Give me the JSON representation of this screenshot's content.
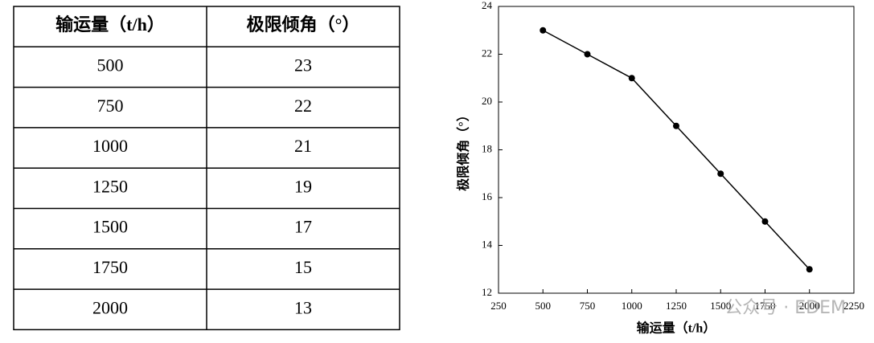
{
  "table": {
    "header": [
      "输运量（t/h）",
      "极限倾角（°）"
    ],
    "rows": [
      [
        "500",
        "23"
      ],
      [
        "750",
        "22"
      ],
      [
        "1000",
        "21"
      ],
      [
        "1250",
        "19"
      ],
      [
        "1500",
        "17"
      ],
      [
        "1750",
        "15"
      ],
      [
        "2000",
        "13"
      ]
    ]
  },
  "chart_data": {
    "type": "line",
    "x_label": "输运量（t/h）",
    "y_label": "极限倾角（°）",
    "x": [
      500,
      750,
      1000,
      1250,
      1500,
      1750,
      2000
    ],
    "series": [
      {
        "name": "极限倾角",
        "color": "#000000",
        "values": [
          23,
          22,
          21,
          19,
          17,
          15,
          13
        ]
      }
    ],
    "xlim": [
      250,
      2250
    ],
    "xticks": [
      250,
      500,
      750,
      1000,
      1250,
      1500,
      1750,
      2000,
      2250
    ],
    "ylim": [
      12,
      24
    ],
    "yticks": [
      12,
      14,
      16,
      18,
      20,
      22,
      24
    ],
    "grid": false
  },
  "watermark": "公众号 · EDEM"
}
